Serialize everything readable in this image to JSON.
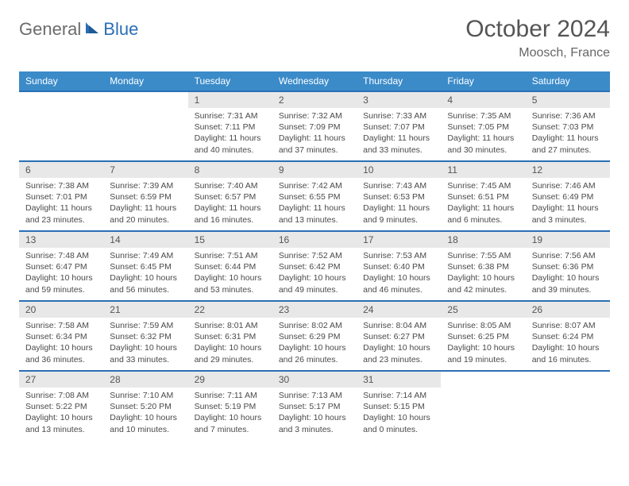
{
  "logo": {
    "text1": "General",
    "text2": "Blue"
  },
  "title": "October 2024",
  "location": "Moosch, France",
  "colors": {
    "header_bg": "#3b8bc9",
    "header_text": "#ffffff",
    "border": "#2a6fb5",
    "daynum_bg": "#e8e8e8",
    "text": "#4a4a4a",
    "logo_gray": "#6b6b6b",
    "logo_blue": "#2a6fb5"
  },
  "day_headers": [
    "Sunday",
    "Monday",
    "Tuesday",
    "Wednesday",
    "Thursday",
    "Friday",
    "Saturday"
  ],
  "weeks": [
    [
      {
        "n": "",
        "lines": []
      },
      {
        "n": "",
        "lines": []
      },
      {
        "n": "1",
        "lines": [
          "Sunrise: 7:31 AM",
          "Sunset: 7:11 PM",
          "Daylight: 11 hours",
          "and 40 minutes."
        ]
      },
      {
        "n": "2",
        "lines": [
          "Sunrise: 7:32 AM",
          "Sunset: 7:09 PM",
          "Daylight: 11 hours",
          "and 37 minutes."
        ]
      },
      {
        "n": "3",
        "lines": [
          "Sunrise: 7:33 AM",
          "Sunset: 7:07 PM",
          "Daylight: 11 hours",
          "and 33 minutes."
        ]
      },
      {
        "n": "4",
        "lines": [
          "Sunrise: 7:35 AM",
          "Sunset: 7:05 PM",
          "Daylight: 11 hours",
          "and 30 minutes."
        ]
      },
      {
        "n": "5",
        "lines": [
          "Sunrise: 7:36 AM",
          "Sunset: 7:03 PM",
          "Daylight: 11 hours",
          "and 27 minutes."
        ]
      }
    ],
    [
      {
        "n": "6",
        "lines": [
          "Sunrise: 7:38 AM",
          "Sunset: 7:01 PM",
          "Daylight: 11 hours",
          "and 23 minutes."
        ]
      },
      {
        "n": "7",
        "lines": [
          "Sunrise: 7:39 AM",
          "Sunset: 6:59 PM",
          "Daylight: 11 hours",
          "and 20 minutes."
        ]
      },
      {
        "n": "8",
        "lines": [
          "Sunrise: 7:40 AM",
          "Sunset: 6:57 PM",
          "Daylight: 11 hours",
          "and 16 minutes."
        ]
      },
      {
        "n": "9",
        "lines": [
          "Sunrise: 7:42 AM",
          "Sunset: 6:55 PM",
          "Daylight: 11 hours",
          "and 13 minutes."
        ]
      },
      {
        "n": "10",
        "lines": [
          "Sunrise: 7:43 AM",
          "Sunset: 6:53 PM",
          "Daylight: 11 hours",
          "and 9 minutes."
        ]
      },
      {
        "n": "11",
        "lines": [
          "Sunrise: 7:45 AM",
          "Sunset: 6:51 PM",
          "Daylight: 11 hours",
          "and 6 minutes."
        ]
      },
      {
        "n": "12",
        "lines": [
          "Sunrise: 7:46 AM",
          "Sunset: 6:49 PM",
          "Daylight: 11 hours",
          "and 3 minutes."
        ]
      }
    ],
    [
      {
        "n": "13",
        "lines": [
          "Sunrise: 7:48 AM",
          "Sunset: 6:47 PM",
          "Daylight: 10 hours",
          "and 59 minutes."
        ]
      },
      {
        "n": "14",
        "lines": [
          "Sunrise: 7:49 AM",
          "Sunset: 6:45 PM",
          "Daylight: 10 hours",
          "and 56 minutes."
        ]
      },
      {
        "n": "15",
        "lines": [
          "Sunrise: 7:51 AM",
          "Sunset: 6:44 PM",
          "Daylight: 10 hours",
          "and 53 minutes."
        ]
      },
      {
        "n": "16",
        "lines": [
          "Sunrise: 7:52 AM",
          "Sunset: 6:42 PM",
          "Daylight: 10 hours",
          "and 49 minutes."
        ]
      },
      {
        "n": "17",
        "lines": [
          "Sunrise: 7:53 AM",
          "Sunset: 6:40 PM",
          "Daylight: 10 hours",
          "and 46 minutes."
        ]
      },
      {
        "n": "18",
        "lines": [
          "Sunrise: 7:55 AM",
          "Sunset: 6:38 PM",
          "Daylight: 10 hours",
          "and 42 minutes."
        ]
      },
      {
        "n": "19",
        "lines": [
          "Sunrise: 7:56 AM",
          "Sunset: 6:36 PM",
          "Daylight: 10 hours",
          "and 39 minutes."
        ]
      }
    ],
    [
      {
        "n": "20",
        "lines": [
          "Sunrise: 7:58 AM",
          "Sunset: 6:34 PM",
          "Daylight: 10 hours",
          "and 36 minutes."
        ]
      },
      {
        "n": "21",
        "lines": [
          "Sunrise: 7:59 AM",
          "Sunset: 6:32 PM",
          "Daylight: 10 hours",
          "and 33 minutes."
        ]
      },
      {
        "n": "22",
        "lines": [
          "Sunrise: 8:01 AM",
          "Sunset: 6:31 PM",
          "Daylight: 10 hours",
          "and 29 minutes."
        ]
      },
      {
        "n": "23",
        "lines": [
          "Sunrise: 8:02 AM",
          "Sunset: 6:29 PM",
          "Daylight: 10 hours",
          "and 26 minutes."
        ]
      },
      {
        "n": "24",
        "lines": [
          "Sunrise: 8:04 AM",
          "Sunset: 6:27 PM",
          "Daylight: 10 hours",
          "and 23 minutes."
        ]
      },
      {
        "n": "25",
        "lines": [
          "Sunrise: 8:05 AM",
          "Sunset: 6:25 PM",
          "Daylight: 10 hours",
          "and 19 minutes."
        ]
      },
      {
        "n": "26",
        "lines": [
          "Sunrise: 8:07 AM",
          "Sunset: 6:24 PM",
          "Daylight: 10 hours",
          "and 16 minutes."
        ]
      }
    ],
    [
      {
        "n": "27",
        "lines": [
          "Sunrise: 7:08 AM",
          "Sunset: 5:22 PM",
          "Daylight: 10 hours",
          "and 13 minutes."
        ]
      },
      {
        "n": "28",
        "lines": [
          "Sunrise: 7:10 AM",
          "Sunset: 5:20 PM",
          "Daylight: 10 hours",
          "and 10 minutes."
        ]
      },
      {
        "n": "29",
        "lines": [
          "Sunrise: 7:11 AM",
          "Sunset: 5:19 PM",
          "Daylight: 10 hours",
          "and 7 minutes."
        ]
      },
      {
        "n": "30",
        "lines": [
          "Sunrise: 7:13 AM",
          "Sunset: 5:17 PM",
          "Daylight: 10 hours",
          "and 3 minutes."
        ]
      },
      {
        "n": "31",
        "lines": [
          "Sunrise: 7:14 AM",
          "Sunset: 5:15 PM",
          "Daylight: 10 hours",
          "and 0 minutes."
        ]
      },
      {
        "n": "",
        "lines": []
      },
      {
        "n": "",
        "lines": []
      }
    ]
  ]
}
